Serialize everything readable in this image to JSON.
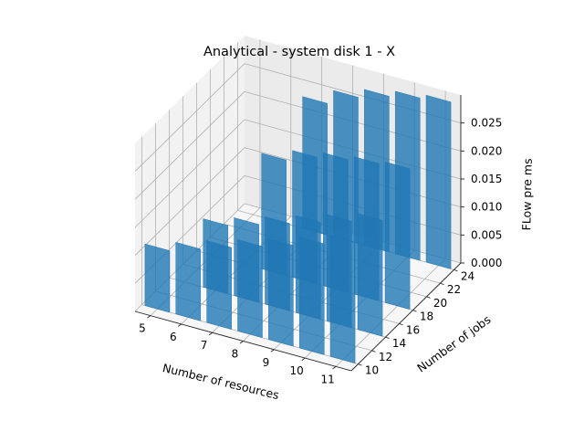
{
  "chart_data": {
    "type": "bar3d",
    "title": "Analytical - system disk 1 - X",
    "xlabel": "Number of resources",
    "ylabel": "Number of jobs",
    "zlabel": "FLow pre ms",
    "x_ticks": [
      "5",
      "6",
      "7",
      "8",
      "9",
      "10",
      "11"
    ],
    "y_ticks": [
      "10",
      "12",
      "14",
      "16",
      "18",
      "20",
      "22",
      "24"
    ],
    "z_ticks": [
      "0.000",
      "0.005",
      "0.010",
      "0.015",
      "0.020",
      "0.025"
    ],
    "xlim": [
      4.5,
      11.5
    ],
    "ylim": [
      9,
      25
    ],
    "zlim": [
      0,
      0.03
    ],
    "bar_color": "#1f77b4",
    "grid": true,
    "series": [
      {
        "x": 5,
        "y": 10,
        "z": 0.011
      },
      {
        "x": 6,
        "y": 10,
        "z": 0.0128
      },
      {
        "x": 7,
        "y": 10,
        "z": 0.0146
      },
      {
        "x": 8,
        "y": 10,
        "z": 0.0163
      },
      {
        "x": 9,
        "y": 10,
        "z": 0.018
      },
      {
        "x": 10,
        "y": 10,
        "z": 0.0198
      },
      {
        "x": 11,
        "y": 10,
        "z": 0.0216
      },
      {
        "x": 6,
        "y": 14,
        "z": 0.0122
      },
      {
        "x": 7,
        "y": 14,
        "z": 0.0139
      },
      {
        "x": 8,
        "y": 14,
        "z": 0.0156
      },
      {
        "x": 9,
        "y": 14,
        "z": 0.0173
      },
      {
        "x": 10,
        "y": 14,
        "z": 0.019
      },
      {
        "x": 11,
        "y": 14,
        "z": 0.0207
      },
      {
        "x": 7,
        "y": 18,
        "z": 0.0206
      },
      {
        "x": 8,
        "y": 18,
        "z": 0.0226
      },
      {
        "x": 9,
        "y": 18,
        "z": 0.0237
      },
      {
        "x": 10,
        "y": 18,
        "z": 0.0245
      },
      {
        "x": 11,
        "y": 18,
        "z": 0.0251
      },
      {
        "x": 7,
        "y": 24,
        "z": 0.0235
      },
      {
        "x": 8,
        "y": 24,
        "z": 0.0261
      },
      {
        "x": 9,
        "y": 24,
        "z": 0.0278
      },
      {
        "x": 10,
        "y": 24,
        "z": 0.029
      },
      {
        "x": 11,
        "y": 24,
        "z": 0.0298
      }
    ]
  }
}
